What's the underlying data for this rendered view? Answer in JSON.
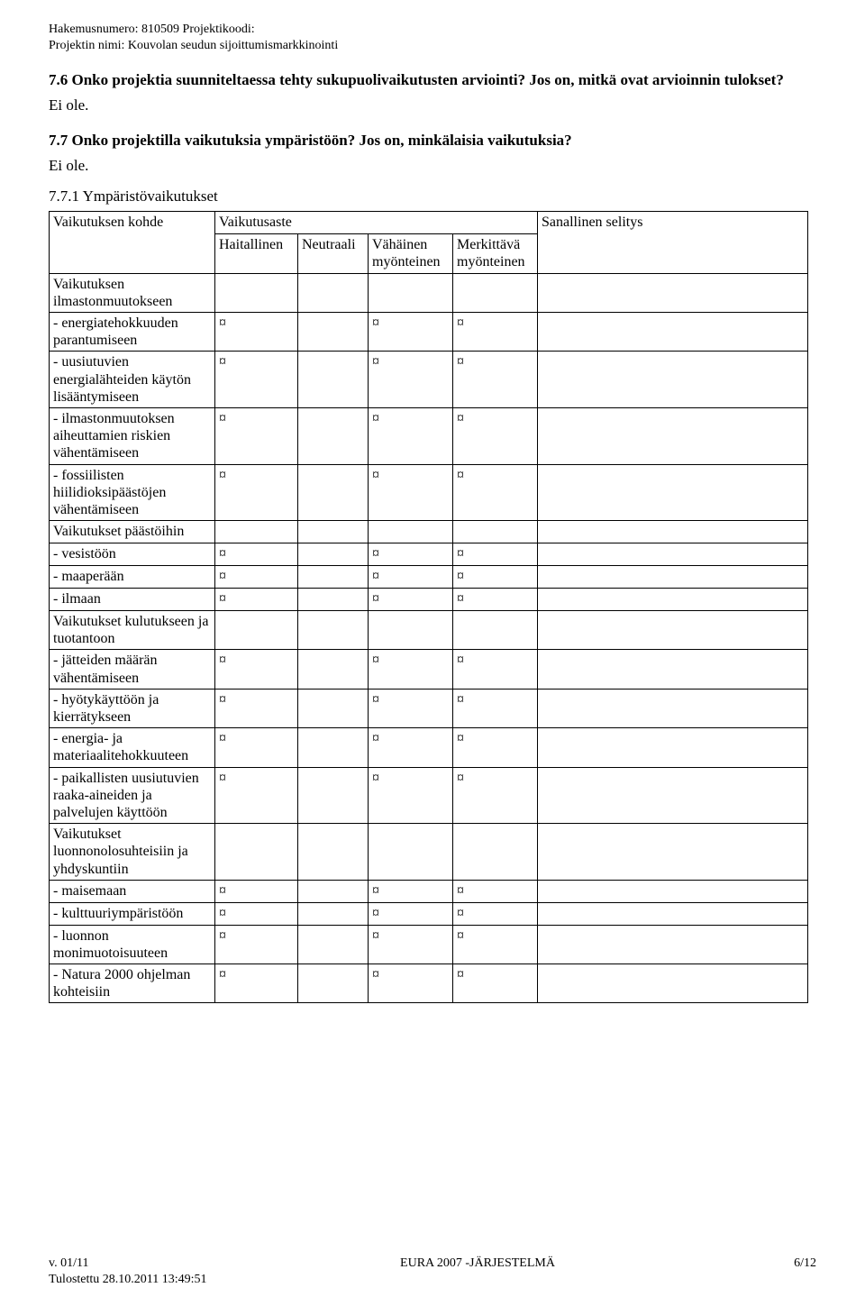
{
  "meta": {
    "line1": "Hakemusnumero: 810509  Projektikoodi:",
    "line2": "Projektin nimi: Kouvolan seudun sijoittumismarkkinointi"
  },
  "q76": {
    "heading": "7.6 Onko projektia suunniteltaessa tehty sukupuolivaikutusten arviointi? Jos on, mitkä ovat arvioinnin tulokset?",
    "answer": "Ei ole."
  },
  "q77": {
    "heading": "7.7 Onko projektilla vaikutuksia ympäristöön? Jos on, minkälaisia vaikutuksia?",
    "answer": "Ei ole."
  },
  "q771": {
    "heading": "7.7.1 Ympäristövaikutukset"
  },
  "table": {
    "head": {
      "kohde": "Vaikutuksen kohde",
      "aste": "Vaikutusaste",
      "selitys": "Sanallinen selitys",
      "haitallinen": "Haitallinen",
      "neutraali": "Neutraali",
      "vahainen": "Vähäinen myönteinen",
      "merkittava": "Merkittävä myönteinen"
    },
    "mark": "¤",
    "groups": [
      {
        "title": "Vaikutuksen ilmastonmuutokseen",
        "rows": [
          {
            "label": "- energiatehokkuuden parantumiseen"
          },
          {
            "label": "- uusiutuvien energialähteiden käytön lisääntymiseen"
          },
          {
            "label": "- ilmastonmuutoksen aiheuttamien riskien vähentämiseen"
          },
          {
            "label": "- fossiilisten hiilidioksipäästöjen vähentämiseen"
          }
        ]
      },
      {
        "title": "Vaikutukset päästöihin",
        "rows": [
          {
            "label": "- vesistöön"
          },
          {
            "label": "- maaperään"
          },
          {
            "label": "- ilmaan"
          }
        ]
      },
      {
        "title": "Vaikutukset kulutukseen ja tuotantoon",
        "rows": [
          {
            "label": "- jätteiden määrän vähentämiseen"
          },
          {
            "label": "- hyötykäyttöön ja kierrätykseen"
          },
          {
            "label": "- energia- ja materiaalitehokkuuteen"
          },
          {
            "label": "- paikallisten uusiutuvien raaka-aineiden ja palvelujen käyttöön"
          }
        ]
      },
      {
        "title": "Vaikutukset luonnonolosuhteisiin ja yhdyskuntiin",
        "rows": [
          {
            "label": "- maisemaan"
          },
          {
            "label": "- kulttuuriympäristöön"
          },
          {
            "label": "- luonnon monimuotoisuuteen"
          },
          {
            "label": "- Natura 2000 ohjelman kohteisiin"
          }
        ]
      }
    ]
  },
  "footer": {
    "version": "v. 01/11",
    "system": "EURA 2007 -JÄRJESTELMÄ",
    "page": "6/12",
    "printed": "Tulostettu 28.10.2011 13:49:51"
  }
}
